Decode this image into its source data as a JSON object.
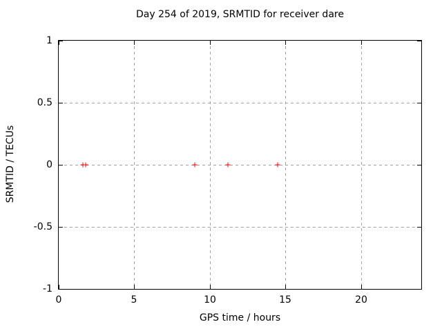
{
  "chart_data": {
    "type": "scatter",
    "title": "Day 254 of 2019, SRMTID for receiver dare",
    "xlabel": "GPS time / hours",
    "ylabel": "SRMTID / TECUs",
    "xlim": [
      0,
      24
    ],
    "ylim": [
      -1,
      1
    ],
    "xticks": [
      0,
      5,
      10,
      15,
      20
    ],
    "xtick_labels": [
      "0",
      "5",
      "10",
      "15",
      "20"
    ],
    "yticks": [
      1,
      0.5,
      0,
      -0.5,
      -1
    ],
    "ytick_labels": [
      "1",
      "0.5",
      "0",
      "-0.5",
      "-1"
    ],
    "grid": true,
    "grid_style": "dashed",
    "legend": "none",
    "series": [
      {
        "name": "SRMTID",
        "marker": "plus",
        "color": "#ff0000",
        "points": [
          {
            "x": 1.6,
            "y": 0.0
          },
          {
            "x": 1.8,
            "y": 0.0
          },
          {
            "x": 9.0,
            "y": 0.0
          },
          {
            "x": 11.2,
            "y": 0.0
          },
          {
            "x": 14.5,
            "y": 0.0
          }
        ]
      }
    ],
    "colors": {
      "background": "#ffffff",
      "axis": "#000000",
      "grid": "#a0a0a0",
      "text": "#000000",
      "marker": "#ff0000"
    }
  }
}
